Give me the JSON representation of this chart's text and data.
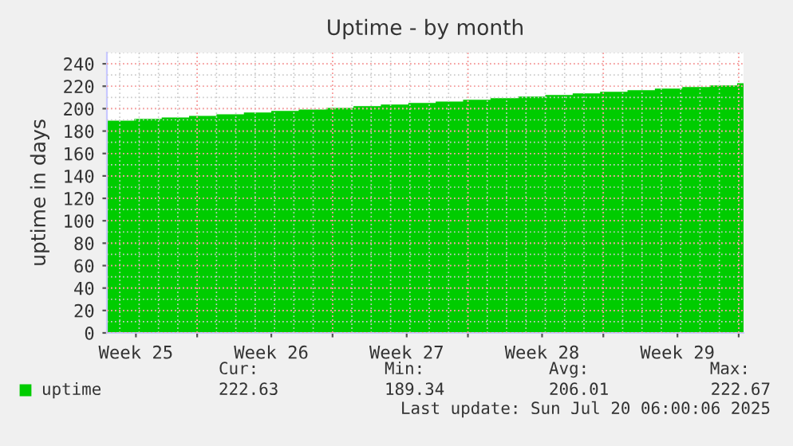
{
  "chart_data": {
    "type": "area",
    "title": "Uptime - by month",
    "ylabel": "uptime in days",
    "x": [
      "2025-06-17T08:00",
      "2025-06-18T18:00",
      "2025-06-20T04:00",
      "2025-06-21T14:00",
      "2025-06-23T00:00",
      "2025-06-24T10:00",
      "2025-06-25T20:00",
      "2025-06-27T06:00",
      "2025-06-28T16:00",
      "2025-06-30T02:00",
      "2025-07-01T12:00",
      "2025-07-02T22:00",
      "2025-07-04T08:00",
      "2025-07-05T18:00",
      "2025-07-07T04:00",
      "2025-07-08T14:00",
      "2025-07-10T00:00",
      "2025-07-11T10:00",
      "2025-07-12T20:00",
      "2025-07-14T06:00",
      "2025-07-15T16:00",
      "2025-07-17T02:00",
      "2025-07-18T12:00",
      "2025-07-19T22:00",
      "2025-07-20T06:00"
    ],
    "series": [
      {
        "name": "uptime",
        "color": "#00cc00",
        "values": [
          189.34,
          190.8,
          192.2,
          193.6,
          195.0,
          196.5,
          197.9,
          199.3,
          200.7,
          202.2,
          203.6,
          205.0,
          206.4,
          207.9,
          209.3,
          210.7,
          212.1,
          213.6,
          215.0,
          216.4,
          217.8,
          219.3,
          220.7,
          222.67,
          222.63
        ]
      }
    ],
    "xlim": [
      "2025-06-17T08:00",
      "2025-07-20T06:00"
    ],
    "xticks": [
      {
        "value": "2025-06-18T20:00",
        "label": "Week 25"
      },
      {
        "value": "2025-06-22T00:00",
        "label": null
      },
      {
        "value": "2025-06-25T20:00",
        "label": "Week 26"
      },
      {
        "value": "2025-06-29T00:00",
        "label": null
      },
      {
        "value": "2025-07-02T20:00",
        "label": "Week 27"
      },
      {
        "value": "2025-07-06T00:00",
        "label": null
      },
      {
        "value": "2025-07-09T20:00",
        "label": "Week 28"
      },
      {
        "value": "2025-07-13T00:00",
        "label": null
      },
      {
        "value": "2025-07-16T20:00",
        "label": "Week 29"
      },
      {
        "value": "2025-07-20T00:00",
        "label": null
      }
    ],
    "ylim": [
      0,
      250
    ],
    "yticks": [
      0,
      20,
      40,
      60,
      80,
      100,
      120,
      140,
      160,
      180,
      200,
      220,
      240
    ],
    "grid": true,
    "legend": "bottom",
    "annotations": [
      "Cur:",
      "Min:",
      "Avg:",
      "Max:",
      "222.63",
      "189.34",
      "206.01",
      "222.67",
      "Last update: Sun Jul 20 06:00:06 2025"
    ]
  }
}
